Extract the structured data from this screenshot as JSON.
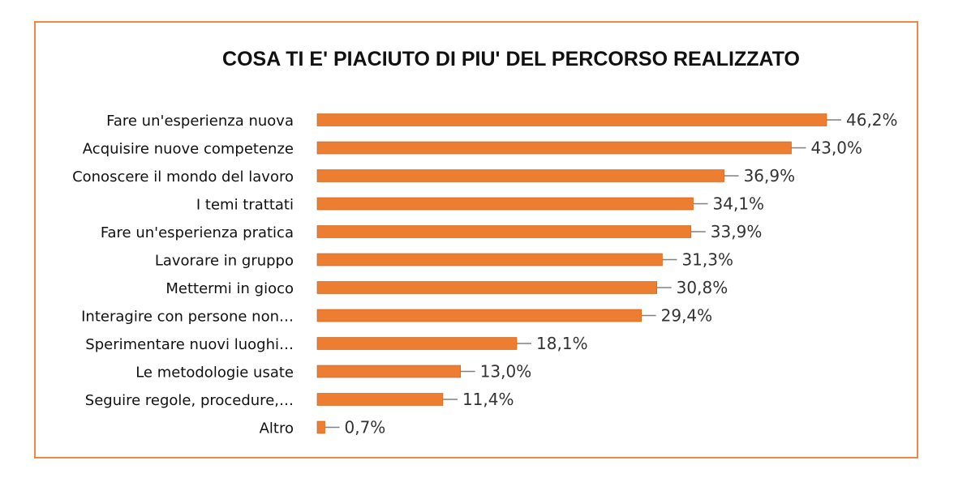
{
  "chart_data": {
    "type": "bar",
    "orientation": "horizontal",
    "title": "COSA TI E' PIACIUTO DI PIU' DEL PERCORSO REALIZZATO",
    "categories": [
      "Fare un'esperienza nuova",
      "Acquisire nuove competenze",
      "Conoscere il mondo del lavoro",
      "I temi trattati",
      "Fare un'esperienza pratica",
      "Lavorare in gruppo",
      "Mettermi in gioco",
      "Interagire con persone non…",
      "Sperimentare nuovi luoghi…",
      "Le metodologie usate",
      "Seguire regole, procedure,…",
      "Altro"
    ],
    "values": [
      46.2,
      43.0,
      36.9,
      34.1,
      33.9,
      31.3,
      30.8,
      29.4,
      18.1,
      13.0,
      11.4,
      0.7
    ],
    "value_labels": [
      "46,2%",
      "43,0%",
      "36,9%",
      "34,1%",
      "33,9%",
      "31,3%",
      "30,8%",
      "29,4%",
      "18,1%",
      "13,0%",
      "11,4%",
      "0,7%"
    ],
    "unit": "%",
    "xlim": [
      0,
      46.2
    ],
    "grid": false,
    "legend": "none",
    "colors": {
      "bar": "#ed7d31",
      "frame": "#ea8a45",
      "leader": "#808080"
    }
  }
}
